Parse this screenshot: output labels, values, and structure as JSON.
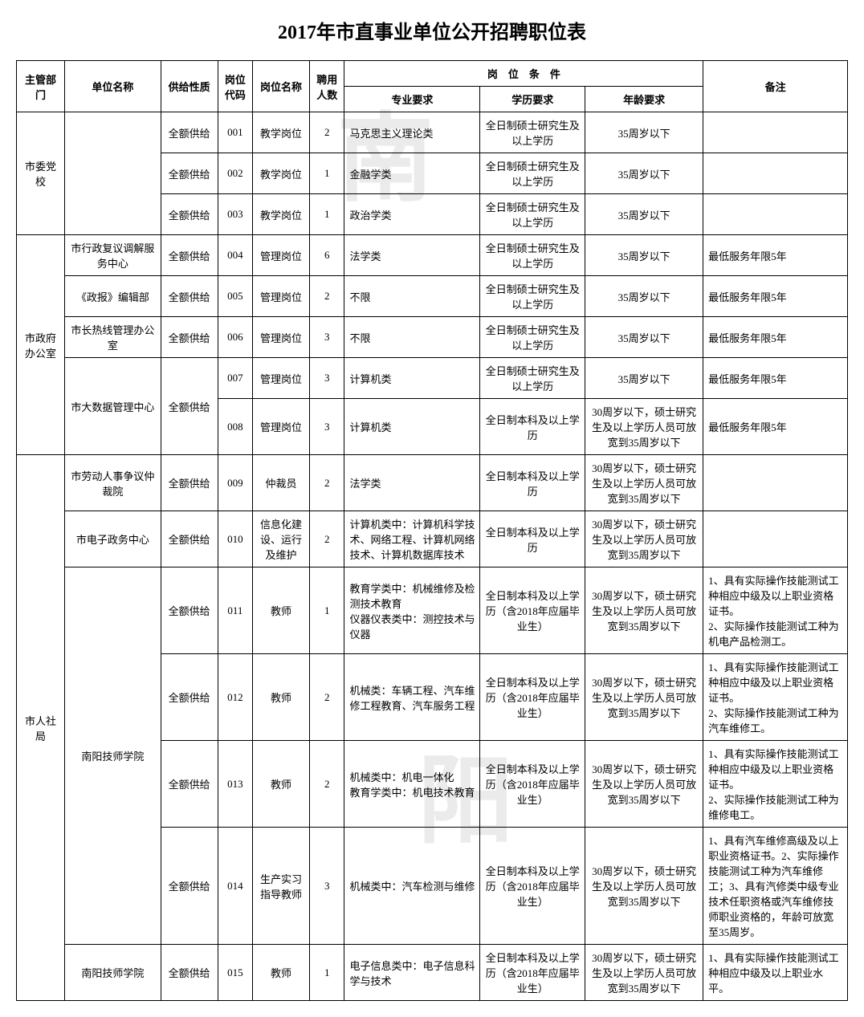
{
  "title": "2017年市直事业单位公开招聘职位表",
  "watermark1": "南",
  "watermark2": "阳",
  "headers": {
    "dept": "主管部门",
    "unit": "单位名称",
    "supply": "供给性质",
    "code": "岗位代码",
    "posname": "岗位名称",
    "count": "聘用人数",
    "conditions": "岗　位　条　件",
    "major": "专业要求",
    "edu": "学历要求",
    "age": "年龄要求",
    "remark": "备注"
  },
  "groups": [
    {
      "dept": "市委党校",
      "rowspan": 3,
      "rows": [
        {
          "unit": "",
          "unitspan": 3,
          "supply": "全额供给",
          "code": "001",
          "posname": "教学岗位",
          "count": "2",
          "major": "马克思主义理论类",
          "edu": "全日制硕士研究生及以上学历",
          "age": "35周岁以下",
          "remark": ""
        },
        {
          "supply": "全额供给",
          "code": "002",
          "posname": "教学岗位",
          "count": "1",
          "major": "金融学类",
          "edu": "全日制硕士研究生及以上学历",
          "age": "35周岁以下",
          "remark": ""
        },
        {
          "supply": "全额供给",
          "code": "003",
          "posname": "教学岗位",
          "count": "1",
          "major": "政治学类",
          "edu": "全日制硕士研究生及以上学历",
          "age": "35周岁以下",
          "remark": ""
        }
      ]
    },
    {
      "dept": "市政府办公室",
      "rowspan": 5,
      "rows": [
        {
          "unit": "市行政复议调解服务中心",
          "unitspan": 1,
          "supply": "全额供给",
          "code": "004",
          "posname": "管理岗位",
          "count": "6",
          "major": "法学类",
          "edu": "全日制硕士研究生及以上学历",
          "age": "35周岁以下",
          "remark": "最低服务年限5年"
        },
        {
          "unit": "《政报》编辑部",
          "unitspan": 1,
          "supply": "全额供给",
          "code": "005",
          "posname": "管理岗位",
          "count": "2",
          "major": "不限",
          "edu": "全日制硕士研究生及以上学历",
          "age": "35周岁以下",
          "remark": "最低服务年限5年"
        },
        {
          "unit": "市长热线管理办公室",
          "unitspan": 1,
          "supply": "全额供给",
          "code": "006",
          "posname": "管理岗位",
          "count": "3",
          "major": "不限",
          "edu": "全日制硕士研究生及以上学历",
          "age": "35周岁以下",
          "remark": "最低服务年限5年"
        },
        {
          "unit": "市大数据管理中心",
          "unitspan": 2,
          "supply": "全额供给",
          "supplyspan": 2,
          "code": "007",
          "posname": "管理岗位",
          "count": "3",
          "major": "计算机类",
          "edu": "全日制硕士研究生及以上学历",
          "age": "35周岁以下",
          "remark": "最低服务年限5年"
        },
        {
          "code": "008",
          "posname": "管理岗位",
          "count": "3",
          "major": "计算机类",
          "edu": "全日制本科及以上学历",
          "age": "30周岁以下，硕士研究生及以上学历人员可放宽到35周岁以下",
          "remark": "最低服务年限5年"
        }
      ]
    },
    {
      "dept": "市人社局",
      "rowspan": 7,
      "rows": [
        {
          "unit": "市劳动人事争议仲裁院",
          "unitspan": 1,
          "supply": "全额供给",
          "code": "009",
          "posname": "仲裁员",
          "count": "2",
          "major": "法学类",
          "edu": "全日制本科及以上学历",
          "age": "30周岁以下，硕士研究生及以上学历人员可放宽到35周岁以下",
          "remark": ""
        },
        {
          "unit": "市电子政务中心",
          "unitspan": 1,
          "supply": "全额供给",
          "code": "010",
          "posname": "信息化建设、运行及维护",
          "count": "2",
          "major": "计算机类中：计算机科学技术、网络工程、计算机网络技术、计算机数据库技术",
          "edu": "全日制本科及以上学历",
          "age": "30周岁以下，硕士研究生及以上学历人员可放宽到35周岁以下",
          "remark": ""
        },
        {
          "unit": "南阳技师学院",
          "unitspan": 4,
          "supply": "全额供给",
          "code": "011",
          "posname": "教师",
          "count": "1",
          "major": "教育学类中：机械维修及检测技术教育\n仪器仪表类中：测控技术与仪器",
          "edu": "全日制本科及以上学历（含2018年应届毕业生）",
          "age": "30周岁以下，硕士研究生及以上学历人员可放宽到35周岁以下",
          "remark": "1、具有实际操作技能测试工种相应中级及以上职业资格证书。\n2、实际操作技能测试工种为机电产品检测工。"
        },
        {
          "supply": "全额供给",
          "code": "012",
          "posname": "教师",
          "count": "2",
          "major": "机械类：车辆工程、汽车维修工程教育、汽车服务工程",
          "edu": "全日制本科及以上学历（含2018年应届毕业生）",
          "age": "30周岁以下，硕士研究生及以上学历人员可放宽到35周岁以下",
          "remark": "1、具有实际操作技能测试工种相应中级及以上职业资格证书。\n2、实际操作技能测试工种为汽车维修工。"
        },
        {
          "supply": "全额供给",
          "code": "013",
          "posname": "教师",
          "count": "2",
          "major": "机械类中：机电一体化\n教育学类中：机电技术教育",
          "edu": "全日制本科及以上学历（含2018年应届毕业生）",
          "age": "30周岁以下，硕士研究生及以上学历人员可放宽到35周岁以下",
          "remark": "1、具有实际操作技能测试工种相应中级及以上职业资格证书。\n2、实际操作技能测试工种为维修电工。"
        },
        {
          "supply": "全额供给",
          "code": "014",
          "posname": "生产实习指导教师",
          "count": "3",
          "major": "机械类中：汽车检测与维修",
          "edu": "全日制本科及以上学历（含2018年应届毕业生）",
          "age": "30周岁以下，硕士研究生及以上学历人员可放宽到35周岁以下",
          "remark": "1、具有汽车维修高级及以上职业资格证书。2、实际操作技能测试工种为汽车维修工；3、具有汽修类中级专业技术任职资格或汽车维修技师职业资格的，年龄可放宽至35周岁。"
        },
        {
          "unit": "南阳技师学院",
          "unitspan": 1,
          "supply": "全额供给",
          "code": "015",
          "posname": "教师",
          "count": "1",
          "major": "电子信息类中：电子信息科学与技术",
          "edu": "全日制本科及以上学历（含2018年应届毕业生）",
          "age": "30周岁以下，硕士研究生及以上学历人员可放宽到35周岁以下",
          "remark": "1、具有实际操作技能测试工种相应中级及以上职业水平。"
        }
      ]
    }
  ]
}
